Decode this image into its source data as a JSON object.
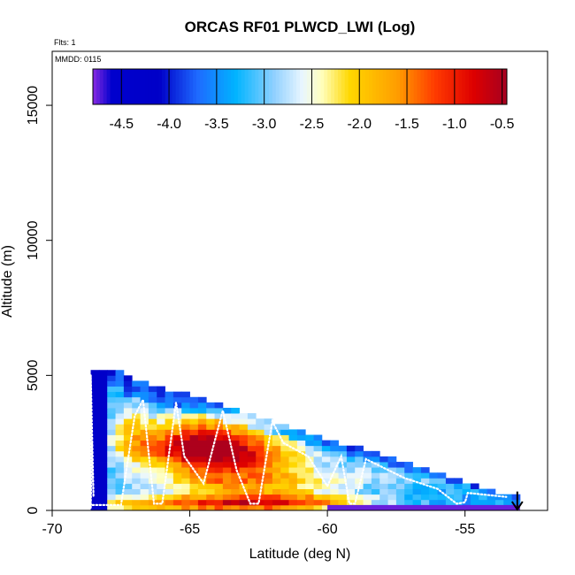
{
  "chart_data": {
    "type": "heatmap",
    "title": "ORCAS RF01 PLWCD_LWI (Log)",
    "xlabel": "Latitude (deg N)",
    "ylabel": "Altitude (m)",
    "xlim": [
      -70,
      -52
    ],
    "ylim": [
      0,
      17000
    ],
    "xticks": [
      -70,
      -65,
      -60,
      -55
    ],
    "xtick_labels": [
      "-70",
      "-65",
      "-60",
      "-55"
    ],
    "yticks": [
      0,
      5000,
      10000,
      15000
    ],
    "ytick_labels": [
      "0",
      "5000",
      "10000",
      "15000"
    ],
    "annotations": {
      "flights": "Flts: 1",
      "date": "MMDD: 0115"
    },
    "colorbar": {
      "range": [
        -4.8,
        -0.45
      ],
      "ticks": [
        -4.5,
        -4.0,
        -3.5,
        -3.0,
        -2.5,
        -2.0,
        -1.5,
        -1.0,
        -0.5
      ],
      "tick_labels": [
        "-4.5",
        "-4.0",
        "-3.5",
        "-3.0",
        "-2.5",
        "-2.0",
        "-1.5",
        "-1.0",
        "-0.5"
      ],
      "stops": [
        {
          "v": -4.8,
          "c": "#8a2be2"
        },
        {
          "v": -4.6,
          "c": "#0000cd"
        },
        {
          "v": -4.1,
          "c": "#0000c8"
        },
        {
          "v": -3.7,
          "c": "#1e6aff"
        },
        {
          "v": -3.3,
          "c": "#00b4ff"
        },
        {
          "v": -2.9,
          "c": "#8fd0ff"
        },
        {
          "v": -2.6,
          "c": "#e9f6ff"
        },
        {
          "v": -2.4,
          "c": "#ffffc0"
        },
        {
          "v": -2.1,
          "c": "#ffd700"
        },
        {
          "v": -1.6,
          "c": "#ff9d00"
        },
        {
          "v": -1.2,
          "c": "#ff3a00"
        },
        {
          "v": -0.8,
          "c": "#dd0000"
        },
        {
          "v": -0.45,
          "c": "#a50021"
        }
      ]
    },
    "heatmap": {
      "lat_start": -68.6,
      "lat_step": 0.3,
      "alt_step": 200,
      "top_start": 5200,
      "top_end": 400,
      "top_break_lat": -67.5,
      "top_break_alt": 4900,
      "surface_band": {
        "lat_from": -60.0,
        "lat_to": -53.0,
        "alt_to": 200,
        "value": -4.75
      }
    },
    "flight_track": {
      "points": [
        [
          -68.6,
          100
        ],
        [
          -68.6,
          5000
        ],
        [
          -68.5,
          500
        ],
        [
          -68.55,
          2500
        ],
        [
          -68.6,
          200
        ],
        [
          -67.5,
          200
        ],
        [
          -67.0,
          3500
        ],
        [
          -66.7,
          4100
        ],
        [
          -66.3,
          250
        ],
        [
          -66.0,
          250
        ],
        [
          -65.5,
          4000
        ],
        [
          -65.2,
          2000
        ],
        [
          -64.5,
          1000
        ],
        [
          -63.8,
          3700
        ],
        [
          -63.3,
          1500
        ],
        [
          -62.8,
          250
        ],
        [
          -62.5,
          250
        ],
        [
          -62.0,
          3300
        ],
        [
          -61.6,
          2500
        ],
        [
          -60.7,
          2000
        ],
        [
          -60.0,
          900
        ],
        [
          -59.5,
          2000
        ],
        [
          -59.2,
          250
        ],
        [
          -59.0,
          250
        ],
        [
          -58.6,
          1900
        ],
        [
          -57.2,
          1200
        ],
        [
          -56.0,
          800
        ],
        [
          -55.3,
          250
        ],
        [
          -55.0,
          300
        ],
        [
          -54.9,
          650
        ],
        [
          -53.5,
          500
        ]
      ],
      "arrow": {
        "lat": -53.1,
        "alt_from": 700,
        "alt_to": 0
      }
    }
  }
}
